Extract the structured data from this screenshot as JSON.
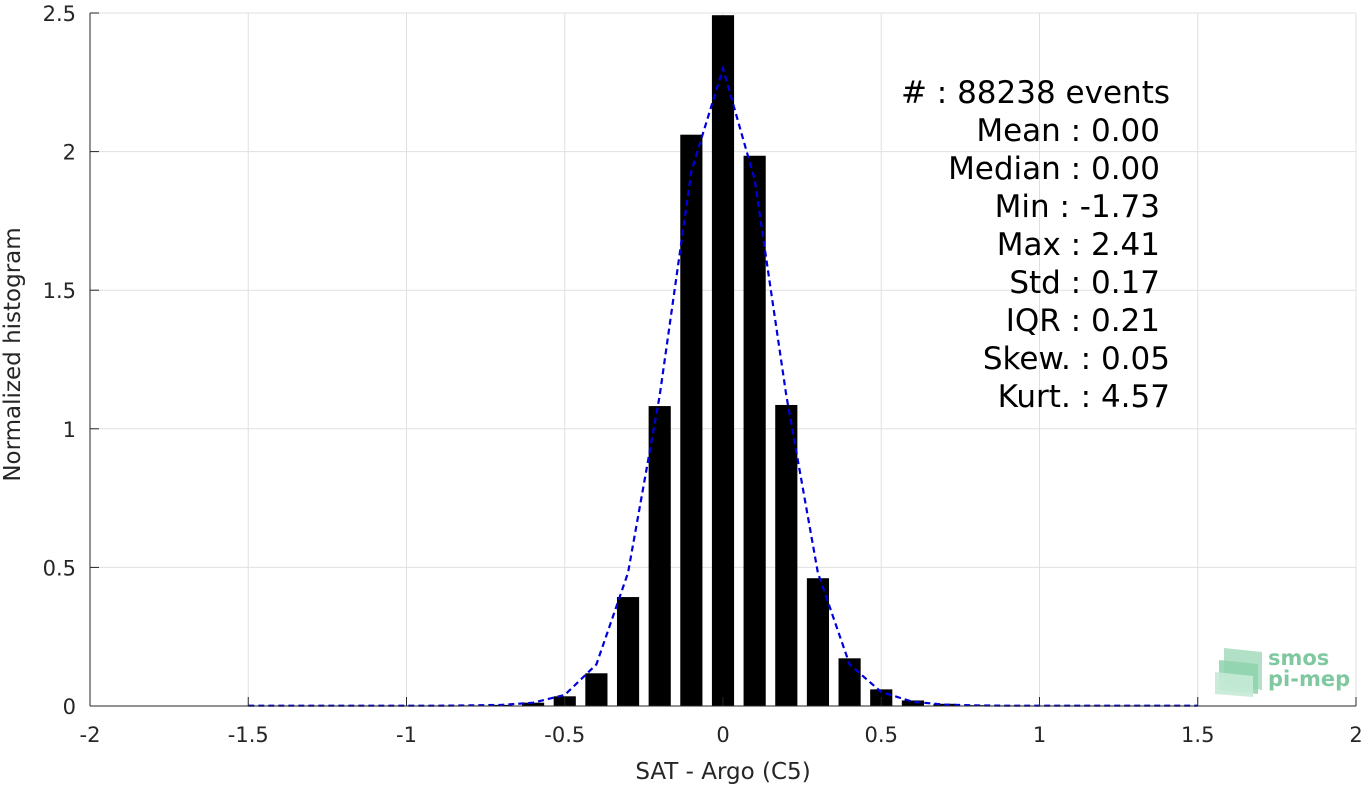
{
  "chart_data": {
    "type": "bar",
    "xlabel": "SAT - Argo (C5)",
    "ylabel": "Normalized histogram",
    "xlim": [
      -2,
      2
    ],
    "ylim": [
      0,
      2.5
    ],
    "grid": true,
    "x_ticks": [
      -2,
      -1.5,
      -1,
      -0.5,
      0,
      0.5,
      1,
      1.5,
      2
    ],
    "x_tick_labels": [
      "-2",
      "-1.5",
      "-1",
      "-0.5",
      "0",
      "0.5",
      "1",
      "1.5",
      "2"
    ],
    "y_ticks": [
      0,
      0.5,
      1,
      1.5,
      2,
      2.5
    ],
    "y_tick_labels": [
      "0",
      "0.5",
      "1",
      "1.5",
      "2",
      "2.5"
    ],
    "bar_width": 0.07,
    "bars": {
      "x": [
        -1.5,
        -1.4,
        -1.3,
        -1.2,
        -1.1,
        -1.0,
        -0.9,
        -0.8,
        -0.7,
        -0.6,
        -0.5,
        -0.4,
        -0.3,
        -0.2,
        -0.1,
        0.0,
        0.1,
        0.2,
        0.3,
        0.4,
        0.5,
        0.6,
        0.7,
        0.8,
        0.9,
        1.0,
        1.1,
        1.2,
        1.3,
        1.4,
        1.5
      ],
      "values": [
        0.001,
        0.001,
        0.001,
        0.001,
        0.001,
        0.001,
        0.001,
        0.002,
        0.004,
        0.012,
        0.035,
        0.118,
        0.393,
        1.082,
        2.061,
        2.492,
        1.985,
        1.086,
        0.461,
        0.172,
        0.06,
        0.02,
        0.008,
        0.003,
        0.002,
        0.001,
        0.001,
        0.001,
        0.001,
        0.001,
        0.001
      ]
    },
    "fit_line": {
      "style": "dashed",
      "color": "#0000dd",
      "x": [
        -1.5,
        -1.4,
        -1.3,
        -1.2,
        -1.1,
        -1.0,
        -0.9,
        -0.8,
        -0.7,
        -0.6,
        -0.5,
        -0.4,
        -0.3,
        -0.2,
        -0.1,
        0.0,
        0.1,
        0.2,
        0.3,
        0.4,
        0.5,
        0.6,
        0.7,
        0.8,
        0.9,
        1.0,
        1.1,
        1.2,
        1.3,
        1.4,
        1.5
      ],
      "values": [
        0.001,
        0.001,
        0.001,
        0.001,
        0.001,
        0.001,
        0.001,
        0.002,
        0.004,
        0.012,
        0.04,
        0.15,
        0.48,
        1.12,
        1.93,
        2.3,
        1.9,
        1.12,
        0.48,
        0.15,
        0.05,
        0.015,
        0.005,
        0.002,
        0.001,
        0.001,
        0.001,
        0.001,
        0.001,
        0.001,
        0.001
      ]
    },
    "annotations": [
      "#  : 88238 events",
      "Mean : 0.00",
      "Median : 0.00",
      "Min : -1.73",
      "Max : 2.41",
      "Std : 0.17",
      "IQR : 0.21",
      "Skew. : 0.05",
      "Kurt. : 4.57"
    ],
    "colors": {
      "bars": "#000000",
      "fit": "#0000dd",
      "grid": "#e0e0e0",
      "axis": "#262626"
    }
  },
  "logo": {
    "line1": "smos",
    "line2": "pi-mep",
    "color": "#7fc8a0"
  }
}
